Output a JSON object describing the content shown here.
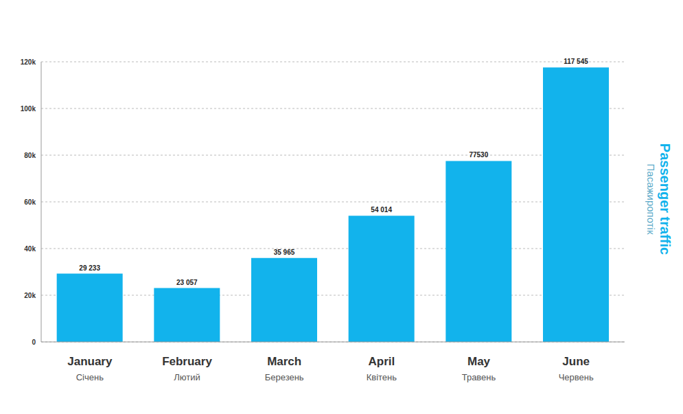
{
  "chart_data": {
    "type": "bar",
    "y_label": "Passenger traffic\nПасажиропотік",
    "categories": [
      "January\nСічень",
      "February\nЛютий",
      "March\nБерезень",
      "April\nКвітень",
      "May\nТравень",
      "June\nЧервень"
    ],
    "values": [
      29233,
      23057,
      35965,
      54014,
      77530,
      117545
    ],
    "value_labels": [
      "29 233",
      "23 057",
      "35 965",
      "54 014",
      "77530",
      "117 545"
    ],
    "color": "#12b3ec",
    "ylim": [
      0,
      120000
    ],
    "yticks": [
      0,
      {
        "value": 20000,
        "label": "20k"
      },
      {
        "value": 40000,
        "label": "40k"
      },
      {
        "value": 60000,
        "label": "60k"
      },
      {
        "value": 80000,
        "label": "80k"
      },
      {
        "value": 100000,
        "label": "100k"
      },
      {
        "value": 120000,
        "label": "120k"
      }
    ],
    "grid": true,
    "data_labels": true
  }
}
